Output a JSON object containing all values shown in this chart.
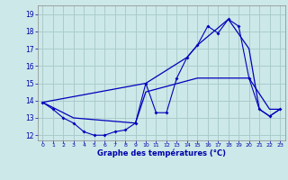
{
  "title": "Graphe des températures (°C)",
  "bg_color": "#cce8e8",
  "grid_color": "#aacccc",
  "line_color": "#0000bb",
  "xlim": [
    -0.5,
    23.5
  ],
  "ylim": [
    11.7,
    19.5
  ],
  "xticks": [
    0,
    1,
    2,
    3,
    4,
    5,
    6,
    7,
    8,
    9,
    10,
    11,
    12,
    13,
    14,
    15,
    16,
    17,
    18,
    19,
    20,
    21,
    22,
    23
  ],
  "yticks": [
    12,
    13,
    14,
    15,
    16,
    17,
    18,
    19
  ],
  "line1_x": [
    0,
    1,
    2,
    3,
    4,
    5,
    6,
    7,
    8,
    9,
    10,
    11,
    12,
    13,
    14,
    15,
    16,
    17,
    18,
    19,
    20,
    21,
    22,
    23
  ],
  "line1_y": [
    13.9,
    13.5,
    13.0,
    12.7,
    12.2,
    12.0,
    12.0,
    12.2,
    12.3,
    12.7,
    15.0,
    13.3,
    13.3,
    15.3,
    16.5,
    17.2,
    18.3,
    17.9,
    18.7,
    18.3,
    15.3,
    13.5,
    13.1,
    13.5
  ],
  "line2_x": [
    0,
    10,
    14,
    15,
    18,
    20,
    21,
    22,
    23
  ],
  "line2_y": [
    13.9,
    15.0,
    16.5,
    17.2,
    18.7,
    17.0,
    13.5,
    13.1,
    13.5
  ],
  "line3_x": [
    0,
    3,
    9,
    10,
    15,
    19,
    20,
    22,
    23
  ],
  "line3_y": [
    13.9,
    13.0,
    12.7,
    14.5,
    15.3,
    15.3,
    15.3,
    13.5,
    13.5
  ],
  "xlabel_size": 6,
  "xtick_size": 4.5,
  "ytick_size": 5.5
}
